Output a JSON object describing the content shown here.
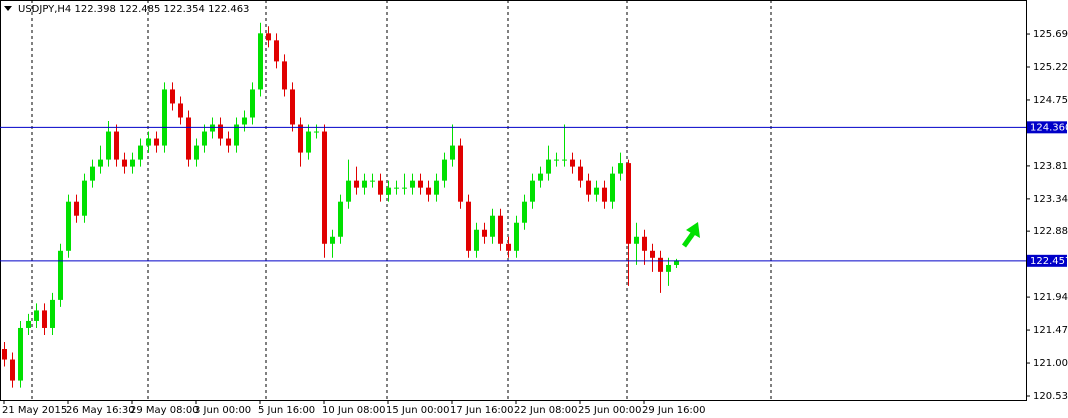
{
  "chart_data": {
    "type": "candlestick",
    "title": "USDJPY,H4  122.398 122.485 122.354 122.463",
    "categories": [
      "21 May 2015",
      null,
      null,
      null,
      null,
      null,
      null,
      null,
      "26 May 16:30",
      null,
      null,
      null,
      null,
      null,
      null,
      null,
      "29 May 08:00",
      null,
      null,
      null,
      null,
      null,
      null,
      null,
      "3 Jun 00:00",
      null,
      null,
      null,
      null,
      null,
      null,
      null,
      "5 Jun 16:00",
      null,
      null,
      null,
      null,
      null,
      null,
      null,
      "10 Jun 08:00",
      null,
      null,
      null,
      null,
      null,
      null,
      null,
      "15 Jun 00:00",
      null,
      null,
      null,
      null,
      null,
      null,
      null,
      "17 Jun 16:00",
      null,
      null,
      null,
      null,
      null,
      null,
      null,
      "22 Jun 08:00",
      null,
      null,
      null,
      null,
      null,
      null,
      null,
      "25 Jun 00:00",
      null,
      null,
      null,
      null,
      null,
      null,
      null,
      "29 Jun 16:00",
      null,
      null,
      null,
      null
    ],
    "open": [
      121.2,
      121.05,
      120.75,
      121.5,
      121.6,
      121.75,
      121.5,
      121.9,
      122.6,
      123.3,
      123.1,
      123.6,
      123.8,
      123.9,
      124.3,
      123.9,
      123.8,
      123.9,
      124.1,
      124.2,
      124.1,
      124.9,
      124.7,
      124.5,
      123.9,
      124.1,
      124.3,
      124.4,
      124.2,
      124.1,
      124.4,
      124.5,
      124.9,
      125.7,
      125.6,
      125.3,
      124.9,
      124.4,
      124.0,
      124.3,
      124.3,
      122.7,
      122.8,
      123.3,
      123.6,
      123.5,
      123.6,
      123.6,
      123.4,
      123.5,
      123.5,
      123.5,
      123.6,
      123.5,
      123.4,
      123.6,
      123.9,
      124.1,
      123.3,
      122.6,
      122.9,
      122.8,
      123.1,
      122.7,
      122.6,
      123.0,
      123.3,
      123.6,
      123.7,
      123.9,
      123.9,
      123.9,
      123.8,
      123.6,
      123.4,
      123.5,
      123.3,
      123.7,
      123.85,
      122.7,
      122.8,
      122.6,
      122.5,
      122.3,
      122.398
    ],
    "high": [
      121.3,
      121.15,
      121.6,
      121.7,
      121.85,
      121.85,
      122.0,
      122.7,
      123.4,
      123.4,
      123.7,
      123.9,
      124.1,
      124.45,
      124.4,
      124.0,
      124.0,
      124.2,
      124.3,
      124.3,
      125.0,
      125.0,
      124.8,
      124.6,
      124.2,
      124.4,
      124.5,
      124.5,
      124.3,
      124.5,
      124.6,
      125.0,
      125.85,
      125.8,
      125.7,
      125.4,
      125.0,
      124.5,
      124.4,
      124.4,
      124.4,
      122.9,
      123.4,
      123.9,
      123.8,
      123.7,
      123.7,
      123.7,
      123.6,
      123.6,
      123.7,
      123.7,
      123.7,
      123.6,
      123.7,
      124.0,
      124.4,
      124.2,
      123.4,
      123.0,
      123.0,
      123.2,
      123.2,
      122.8,
      123.1,
      123.4,
      123.7,
      123.8,
      124.1,
      124.0,
      124.4,
      124.0,
      123.9,
      123.7,
      123.6,
      123.6,
      123.8,
      124.0,
      123.9,
      123.0,
      122.9,
      122.7,
      122.6,
      122.5,
      122.485
    ],
    "low": [
      120.95,
      120.65,
      120.65,
      121.4,
      121.5,
      121.4,
      121.4,
      121.8,
      122.5,
      123.0,
      123.0,
      123.5,
      123.7,
      123.8,
      123.8,
      123.7,
      123.7,
      123.8,
      124.0,
      124.0,
      124.0,
      124.6,
      124.4,
      123.8,
      123.8,
      124.0,
      124.2,
      124.1,
      124.0,
      124.0,
      124.3,
      124.4,
      124.8,
      125.5,
      125.2,
      124.8,
      124.3,
      123.8,
      123.9,
      124.2,
      122.5,
      122.5,
      122.7,
      123.2,
      123.4,
      123.4,
      123.5,
      123.3,
      123.3,
      123.4,
      123.4,
      123.4,
      123.4,
      123.3,
      123.3,
      123.5,
      123.8,
      123.2,
      122.5,
      122.5,
      122.7,
      122.7,
      122.6,
      122.5,
      122.5,
      122.9,
      123.2,
      123.5,
      123.6,
      123.8,
      123.8,
      123.7,
      123.5,
      123.3,
      123.3,
      123.2,
      123.2,
      123.6,
      122.1,
      122.4,
      122.4,
      122.3,
      122.0,
      122.1,
      122.354
    ],
    "close": [
      121.05,
      120.75,
      121.5,
      121.6,
      121.75,
      121.5,
      121.9,
      122.6,
      123.3,
      123.1,
      123.6,
      123.8,
      123.9,
      124.3,
      123.9,
      123.8,
      123.9,
      124.1,
      124.2,
      124.1,
      124.9,
      124.7,
      124.5,
      123.9,
      124.1,
      124.3,
      124.4,
      124.2,
      124.1,
      124.4,
      124.5,
      124.9,
      125.7,
      125.6,
      125.3,
      124.9,
      124.4,
      124.0,
      124.3,
      124.3,
      122.7,
      122.8,
      123.3,
      123.6,
      123.5,
      123.6,
      123.6,
      123.4,
      123.5,
      123.5,
      123.5,
      123.6,
      123.5,
      123.4,
      123.6,
      123.9,
      124.1,
      123.3,
      122.6,
      122.9,
      122.8,
      123.1,
      122.7,
      122.6,
      123.0,
      123.3,
      123.6,
      123.7,
      123.9,
      123.9,
      123.9,
      123.8,
      123.6,
      123.4,
      123.5,
      123.3,
      123.7,
      123.85,
      122.7,
      122.8,
      122.6,
      122.5,
      122.3,
      122.398,
      122.463
    ],
    "up_color": "#00e000",
    "down_color": "#e00000",
    "ylim": [
      120.473,
      126.175
    ],
    "yticks": [
      {
        "value": 125.69,
        "label": "125.690"
      },
      {
        "value": 125.22,
        "label": "125.220"
      },
      {
        "value": 124.75,
        "label": "124.750"
      },
      {
        "value": 123.81,
        "label": "123.810"
      },
      {
        "value": 123.34,
        "label": "123.340"
      },
      {
        "value": 122.88,
        "label": "122.880"
      },
      {
        "value": 121.94,
        "label": "121.940"
      },
      {
        "value": 121.47,
        "label": "121.470"
      },
      {
        "value": 121.0,
        "label": "121.000"
      },
      {
        "value": 120.53,
        "label": "120.530"
      }
    ],
    "levels": [
      {
        "value": 124.36,
        "label": "124.360"
      },
      {
        "value": 122.457,
        "label": "122.457"
      }
    ],
    "level_color": "#0000c8"
  }
}
